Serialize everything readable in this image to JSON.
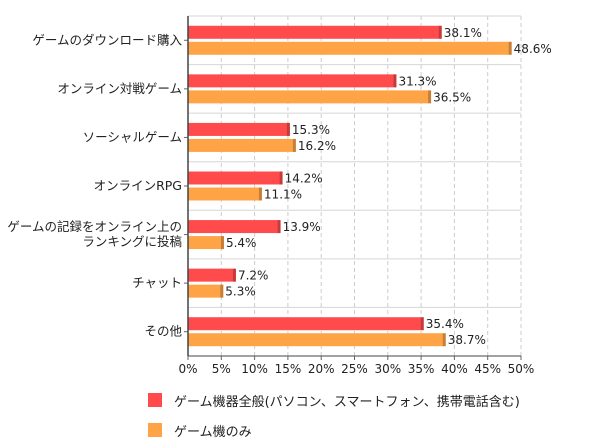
{
  "chart_data": {
    "type": "bar",
    "orientation": "horizontal",
    "categories": [
      [
        "ゲームのダウンロード購入"
      ],
      [
        "オンライン対戦ゲーム"
      ],
      [
        "ソーシャルゲーム"
      ],
      [
        "オンラインRPG"
      ],
      [
        "ゲームの記録をオンライン上の",
        "ランキングに投稿"
      ],
      [
        "チャット"
      ],
      [
        "その他"
      ]
    ],
    "series": [
      {
        "name": "ゲーム機器全般(パソコン、スマートフォン、携帯電話含む)",
        "color": "#ff4b4b",
        "values": [
          38.1,
          31.3,
          15.3,
          14.2,
          13.9,
          7.2,
          35.4
        ]
      },
      {
        "name": "ゲーム機のみ",
        "color": "#ffa347",
        "values": [
          48.6,
          36.5,
          16.2,
          11.1,
          5.4,
          5.3,
          38.7
        ]
      }
    ],
    "xlim": [
      0,
      50
    ],
    "xticks": [
      0,
      5,
      10,
      15,
      20,
      25,
      30,
      35,
      40,
      45,
      50
    ],
    "tick_suffix": "%",
    "value_suffix": "%",
    "grid": true,
    "legend_position": "bottom"
  }
}
